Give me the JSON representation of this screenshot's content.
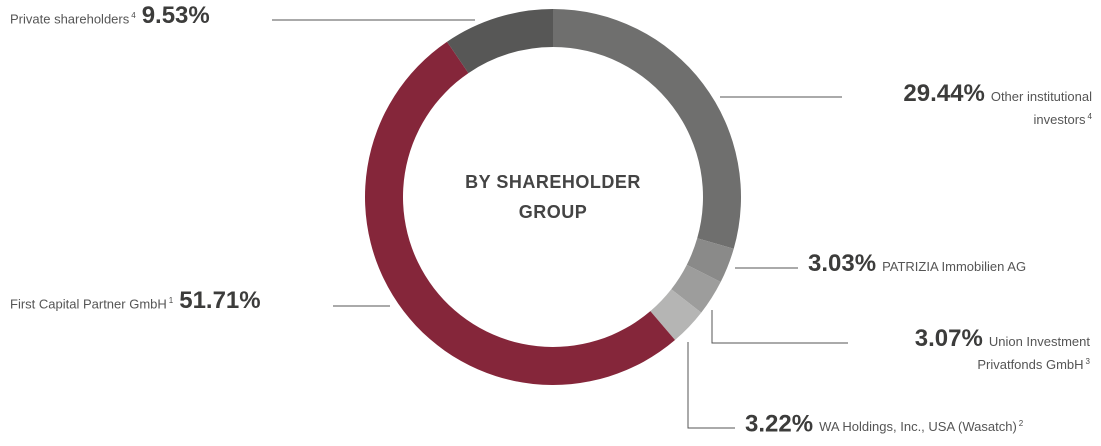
{
  "chart_data": {
    "type": "pie",
    "donut": true,
    "title": "BY SHAREHOLDER GROUP",
    "categories": [
      "Other institutional investors",
      "PATRIZIA Immobilien AG",
      "Union Investment Privatfonds GmbH",
      "WA Holdings, Inc., USA (Wasatch)",
      "First Capital Partner GmbH",
      "Private shareholders"
    ],
    "footnotes": [
      "4",
      null,
      "3",
      "2",
      "1",
      "4"
    ],
    "values": [
      29.44,
      3.03,
      3.07,
      3.22,
      51.71,
      9.53
    ],
    "value_labels": [
      "29.44%",
      "3.03%",
      "3.07%",
      "3.22%",
      "51.71%",
      "9.53%"
    ],
    "colors": [
      "#6f6f6e",
      "#8a8a89",
      "#9d9d9c",
      "#b5b5b4",
      "#85263a",
      "#575756"
    ]
  }
}
